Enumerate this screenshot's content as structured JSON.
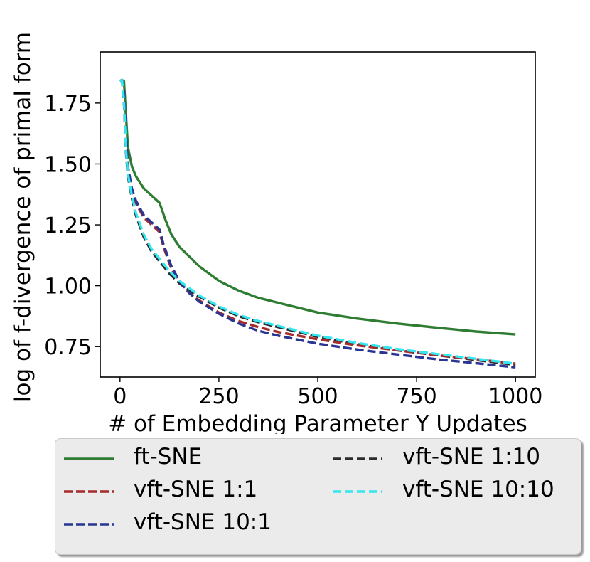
{
  "chart_data": {
    "type": "line",
    "title": "",
    "xlabel": "# of Embedding Parameter Y Updates",
    "ylabel": "log of f-divergence of primal form",
    "xlim": [
      -50,
      1050
    ],
    "ylim": [
      0.625,
      1.96
    ],
    "xticks": [
      0,
      250,
      500,
      750,
      1000
    ],
    "xtick_labels": [
      "0",
      "250",
      "500",
      "750",
      "1000"
    ],
    "yticks": [
      0.75,
      1.0,
      1.25,
      1.5,
      1.75
    ],
    "ytick_labels": [
      "0.75",
      "1.00",
      "1.25",
      "1.50",
      "1.75"
    ],
    "grid": false,
    "legend_position": "below the plot, two columns",
    "series": [
      {
        "name": "ft-SNE",
        "color": "#2e7d32",
        "dash": "solid",
        "x": [
          0,
          5,
          10,
          15,
          20,
          30,
          40,
          60,
          80,
          100,
          115,
          130,
          150,
          175,
          200,
          250,
          300,
          350,
          400,
          500,
          600,
          700,
          800,
          900,
          1000
        ],
        "y": [
          1.84,
          1.845,
          1.84,
          1.7,
          1.57,
          1.49,
          1.45,
          1.4,
          1.37,
          1.34,
          1.27,
          1.21,
          1.16,
          1.12,
          1.08,
          1.02,
          0.98,
          0.95,
          0.93,
          0.89,
          0.865,
          0.845,
          0.828,
          0.812,
          0.8
        ]
      },
      {
        "name": "vft-SNE 1:1",
        "color": "#a52a2a",
        "dash": "dashed",
        "x": [
          0,
          5,
          10,
          15,
          20,
          30,
          40,
          60,
          80,
          100,
          110,
          130,
          150,
          175,
          200,
          250,
          300,
          350,
          400,
          500,
          600,
          700,
          800,
          900,
          1000
        ],
        "y": [
          1.84,
          1.845,
          1.8,
          1.63,
          1.48,
          1.39,
          1.34,
          1.28,
          1.25,
          1.22,
          1.16,
          1.07,
          1.02,
          0.97,
          0.94,
          0.89,
          0.855,
          0.83,
          0.81,
          0.78,
          0.755,
          0.735,
          0.715,
          0.698,
          0.68
        ]
      },
      {
        "name": "vft-SNE 10:1",
        "color": "#283593",
        "dash": "dashed",
        "x": [
          0,
          5,
          10,
          15,
          20,
          30,
          40,
          60,
          80,
          100,
          110,
          130,
          150,
          175,
          200,
          250,
          300,
          350,
          400,
          500,
          600,
          700,
          800,
          900,
          1000
        ],
        "y": [
          1.84,
          1.845,
          1.8,
          1.63,
          1.49,
          1.4,
          1.35,
          1.29,
          1.26,
          1.23,
          1.17,
          1.08,
          1.02,
          0.97,
          0.935,
          0.885,
          0.845,
          0.815,
          0.795,
          0.762,
          0.738,
          0.718,
          0.698,
          0.682,
          0.665
        ]
      },
      {
        "name": "vft-SNE 1:10",
        "color": "#2b2b2b",
        "dash": "dashed",
        "x": [
          0,
          5,
          10,
          15,
          20,
          30,
          40,
          60,
          80,
          100,
          125,
          150,
          175,
          200,
          250,
          300,
          350,
          400,
          500,
          600,
          700,
          800,
          900,
          1000
        ],
        "y": [
          1.84,
          1.845,
          1.75,
          1.55,
          1.45,
          1.36,
          1.29,
          1.2,
          1.14,
          1.1,
          1.05,
          1.01,
          0.98,
          0.955,
          0.91,
          0.875,
          0.85,
          0.83,
          0.79,
          0.76,
          0.735,
          0.715,
          0.695,
          0.675
        ]
      },
      {
        "name": "vft-SNE 10:10",
        "color": "#33e6f0",
        "dash": "dashed",
        "x": [
          0,
          5,
          10,
          15,
          20,
          30,
          40,
          60,
          80,
          100,
          125,
          150,
          175,
          200,
          250,
          300,
          350,
          400,
          500,
          600,
          700,
          800,
          900,
          1000
        ],
        "y": [
          1.84,
          1.845,
          1.76,
          1.56,
          1.46,
          1.37,
          1.3,
          1.21,
          1.15,
          1.11,
          1.06,
          1.02,
          0.99,
          0.96,
          0.915,
          0.88,
          0.855,
          0.835,
          0.795,
          0.765,
          0.74,
          0.72,
          0.7,
          0.68
        ]
      }
    ],
    "legend": {
      "columns": [
        [
          "ft-SNE",
          "vft-SNE 1:1",
          "vft-SNE 10:1"
        ],
        [
          "vft-SNE 1:10",
          "vft-SNE 10:10"
        ]
      ]
    }
  }
}
